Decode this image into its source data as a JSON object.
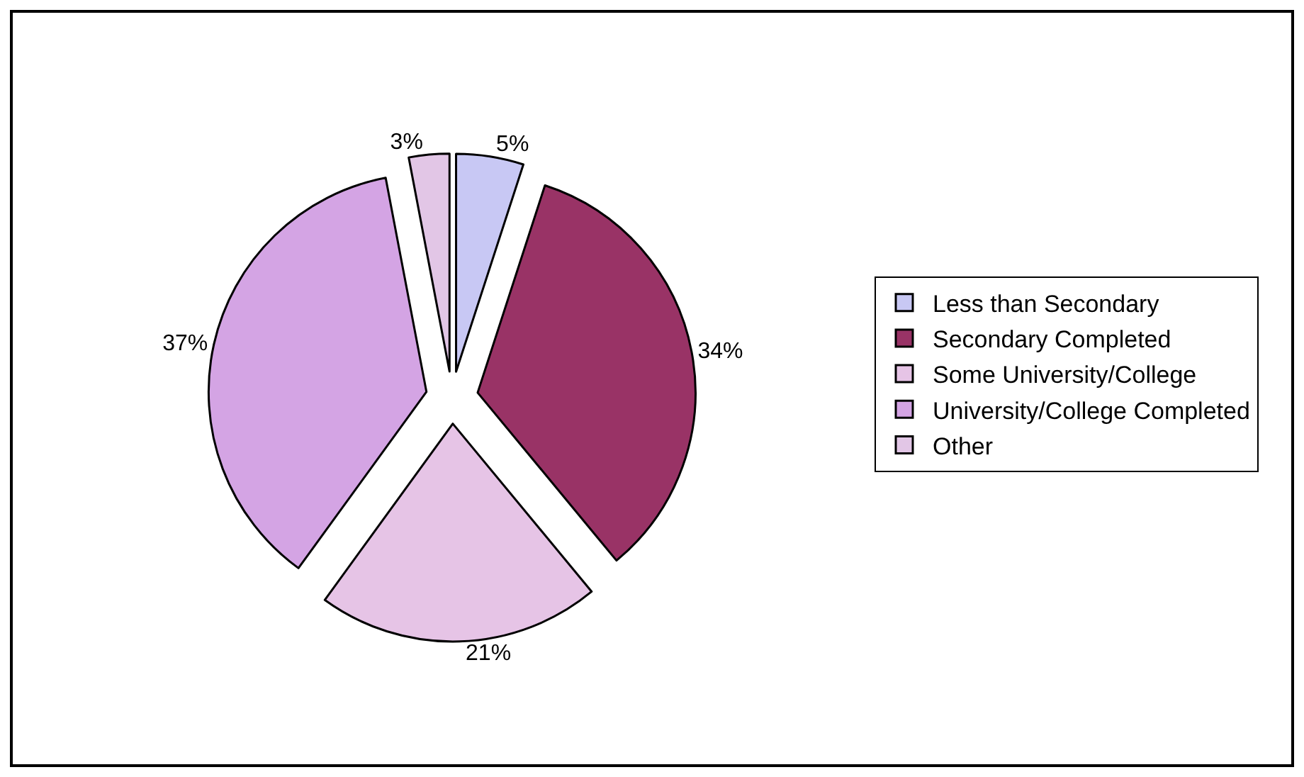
{
  "chart_data": {
    "type": "pie",
    "categories": [
      "Less than Secondary",
      "Secondary Completed",
      "Some University/College",
      "University/College Completed",
      "Other"
    ],
    "values": [
      5,
      34,
      21,
      37,
      3
    ],
    "value_labels": [
      "5%",
      "34%",
      "21%",
      "37%",
      "3%"
    ],
    "colors": [
      "#c8c8f4",
      "#993366",
      "#e6c4e6",
      "#d4a4e4",
      "#e2c6e6"
    ],
    "legend": "right"
  }
}
